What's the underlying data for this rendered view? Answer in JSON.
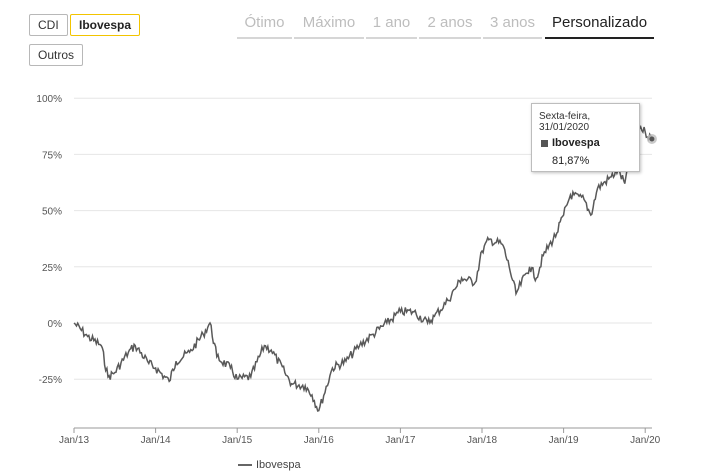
{
  "series_buttons": [
    "CDI",
    "Ibovespa",
    "Outros"
  ],
  "active_series": "Ibovespa",
  "period_tabs": [
    "Ótimo",
    "Máximo",
    "1 ano",
    "2 anos",
    "3 anos",
    "Personalizado"
  ],
  "active_tab": "Personalizado",
  "tooltip": {
    "date": "Sexta-feira, 31/01/2020",
    "series": "Ibovespa",
    "value": "81,87%"
  },
  "legend": {
    "label": "Ibovespa"
  },
  "colors": {
    "line": "#595959",
    "accent": "#f2c400",
    "grid": "#e6e6e6"
  },
  "chart_data": {
    "type": "line",
    "ylim": [
      -50,
      100
    ],
    "y_ticks": [
      {
        "value": 100,
        "label": "100%"
      },
      {
        "value": 75,
        "label": "75%"
      },
      {
        "value": 50,
        "label": "50%"
      },
      {
        "value": 25,
        "label": "25%"
      },
      {
        "value": 0,
        "label": "0%"
      },
      {
        "value": -25,
        "label": "-25%"
      }
    ],
    "x_ticks": [
      "Jan/13",
      "Jan/14",
      "Jan/15",
      "Jan/16",
      "Jan/17",
      "Jan/18",
      "Jan/19",
      "Jan/20"
    ],
    "series": [
      {
        "name": "Ibovespa",
        "points": [
          [
            "2013-01",
            0
          ],
          [
            "2013-03",
            -6
          ],
          [
            "2013-05",
            -10
          ],
          [
            "2013-06",
            -24
          ],
          [
            "2013-07",
            -22
          ],
          [
            "2013-09",
            -13
          ],
          [
            "2013-10",
            -10
          ],
          [
            "2013-12",
            -18
          ],
          [
            "2014-01",
            -20
          ],
          [
            "2014-03",
            -26
          ],
          [
            "2014-04",
            -17
          ],
          [
            "2014-06",
            -13
          ],
          [
            "2014-08",
            -5
          ],
          [
            "2014-09",
            0
          ],
          [
            "2014-10",
            -15
          ],
          [
            "2014-12",
            -20
          ],
          [
            "2015-01",
            -25
          ],
          [
            "2015-03",
            -24
          ],
          [
            "2015-05",
            -10
          ],
          [
            "2015-06",
            -12
          ],
          [
            "2015-08",
            -22
          ],
          [
            "2015-09",
            -27
          ],
          [
            "2015-11",
            -28
          ],
          [
            "2015-12",
            -32
          ],
          [
            "2016-01",
            -39
          ],
          [
            "2016-03",
            -20
          ],
          [
            "2016-05",
            -17
          ],
          [
            "2016-07",
            -10
          ],
          [
            "2016-09",
            -5
          ],
          [
            "2016-11",
            0
          ],
          [
            "2017-01",
            5
          ],
          [
            "2017-03",
            5
          ],
          [
            "2017-05",
            0
          ],
          [
            "2017-06",
            3
          ],
          [
            "2017-08",
            10
          ],
          [
            "2017-09",
            15
          ],
          [
            "2017-10",
            20
          ],
          [
            "2017-12",
            18
          ],
          [
            "2018-01",
            32
          ],
          [
            "2018-02",
            37
          ],
          [
            "2018-04",
            35
          ],
          [
            "2018-05",
            25
          ],
          [
            "2018-06",
            13
          ],
          [
            "2018-08",
            25
          ],
          [
            "2018-09",
            20
          ],
          [
            "2018-10",
            30
          ],
          [
            "2018-12",
            40
          ],
          [
            "2019-01",
            48
          ],
          [
            "2019-02",
            57
          ],
          [
            "2019-04",
            55
          ],
          [
            "2019-05",
            48
          ],
          [
            "2019-06",
            60
          ],
          [
            "2019-08",
            65
          ],
          [
            "2019-09",
            68
          ],
          [
            "2019-10",
            62
          ],
          [
            "2019-11",
            75
          ],
          [
            "2019-12",
            88
          ],
          [
            "2020-01",
            85
          ],
          [
            "2020-01-31",
            81.87
          ]
        ]
      }
    ]
  }
}
